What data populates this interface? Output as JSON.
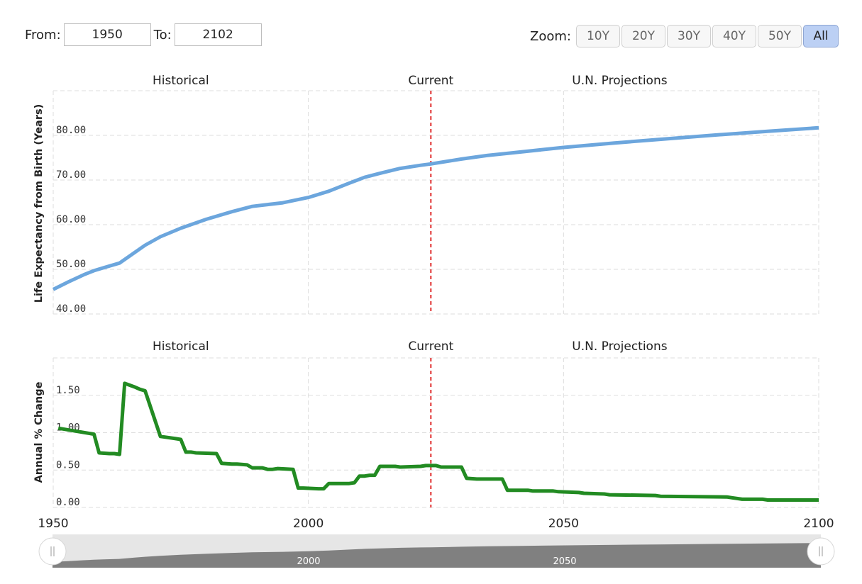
{
  "range_selector": {
    "from_label": "From:",
    "from_value": "1950",
    "to_label": "To:",
    "to_value": "2102",
    "zoom_label": "Zoom:",
    "zoom_buttons": [
      "10Y",
      "20Y",
      "30Y",
      "40Y",
      "50Y",
      "All"
    ],
    "zoom_selected": "All"
  },
  "colors": {
    "life_expectancy_line": "#6ca6dd",
    "annual_change_line": "#228b22",
    "current_marker": "#e03030",
    "grid": "#dddddd",
    "active_zoom": "#bcd0f4",
    "navigator_fill": "#808080"
  },
  "chart_data": [
    {
      "type": "line",
      "title": "",
      "annotations": [
        "Historical",
        "Current",
        "U.N. Projections"
      ],
      "current_year": 2024,
      "xlabel": "",
      "ylabel": "Life Expectancy from Birth (Years)",
      "xlim": [
        1950,
        2100
      ],
      "ylim": [
        40,
        90
      ],
      "x_ticks": [
        1950,
        2000,
        2050,
        2100
      ],
      "y_ticks": [
        "40.00",
        "50.00",
        "60.00",
        "70.00",
        "80.00"
      ],
      "grid": true,
      "legend": "none",
      "series": [
        {
          "x": [
            1950,
            1953,
            1956,
            1958,
            1960,
            1963,
            1966,
            1968,
            1971,
            1975,
            1980,
            1985,
            1989,
            1995,
            2000,
            2004,
            2008,
            2011,
            2014,
            2018,
            2022,
            2024,
            2030,
            2035,
            2040,
            2050,
            2060,
            2070,
            2080,
            2090,
            2100
          ],
          "values": [
            45.5,
            47.2,
            48.8,
            49.7,
            50.4,
            51.4,
            53.8,
            55.4,
            57.3,
            59.2,
            61.2,
            62.9,
            64.1,
            64.9,
            66.1,
            67.5,
            69.3,
            70.6,
            71.5,
            72.6,
            73.3,
            73.6,
            74.7,
            75.5,
            76.1,
            77.3,
            78.3,
            79.2,
            80.1,
            80.9,
            81.7
          ]
        }
      ]
    },
    {
      "type": "line",
      "title": "",
      "annotations": [
        "Historical",
        "Current",
        "U.N. Projections"
      ],
      "current_year": 2024,
      "xlabel": "",
      "ylabel": "Annual % Change",
      "xlim": [
        1950,
        2100
      ],
      "ylim": [
        0,
        2
      ],
      "x_ticks": [
        1950,
        2000,
        2050,
        2100
      ],
      "y_ticks": [
        "0.00",
        "0.50",
        "1.00",
        "1.50"
      ],
      "grid": true,
      "legend": "none",
      "series": [
        {
          "x": [
            1951,
            1958,
            1959,
            1961,
            1962,
            1963,
            1964,
            1966,
            1967,
            1968,
            1971,
            1972,
            1974,
            1975,
            1976,
            1977,
            1978,
            1982,
            1983,
            1985,
            1986,
            1988,
            1989,
            1991,
            1992,
            1993,
            1994,
            1997,
            1998,
            1999,
            2002,
            2003,
            2004,
            2007,
            2008,
            2009,
            2010,
            2011,
            2012,
            2013,
            2014,
            2017,
            2018,
            2022,
            2023,
            2025,
            2026,
            2030,
            2031,
            2033,
            2034,
            2038,
            2039,
            2043,
            2044,
            2048,
            2049,
            2053,
            2054,
            2058,
            2059,
            2068,
            2069,
            2082,
            2083,
            2084,
            2085,
            2089,
            2090,
            2100
          ],
          "values": [
            1.06,
            0.98,
            0.73,
            0.72,
            0.72,
            0.71,
            1.66,
            1.61,
            1.58,
            1.56,
            0.95,
            0.94,
            0.92,
            0.91,
            0.74,
            0.74,
            0.73,
            0.72,
            0.59,
            0.58,
            0.58,
            0.57,
            0.53,
            0.53,
            0.51,
            0.51,
            0.52,
            0.51,
            0.26,
            0.26,
            0.25,
            0.25,
            0.32,
            0.32,
            0.32,
            0.33,
            0.42,
            0.42,
            0.43,
            0.43,
            0.55,
            0.55,
            0.54,
            0.55,
            0.56,
            0.56,
            0.54,
            0.54,
            0.39,
            0.38,
            0.38,
            0.38,
            0.23,
            0.23,
            0.22,
            0.22,
            0.21,
            0.2,
            0.19,
            0.18,
            0.17,
            0.16,
            0.15,
            0.14,
            0.13,
            0.12,
            0.11,
            0.11,
            0.1,
            0.1
          ]
        }
      ]
    }
  ],
  "navigator": {
    "tick_labels": [
      "2000",
      "2050"
    ]
  }
}
